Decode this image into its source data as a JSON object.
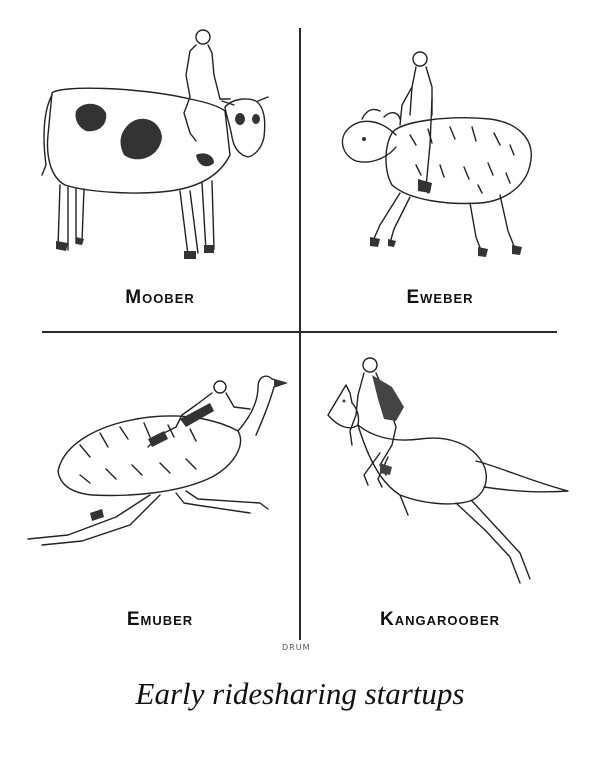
{
  "panels": [
    {
      "label": "Moober",
      "animal": "cow"
    },
    {
      "label": "Eweber",
      "animal": "sheep"
    },
    {
      "label": "Emuber",
      "animal": "emu"
    },
    {
      "label": "Kangaroober",
      "animal": "kangaroo"
    }
  ],
  "signature": "DRUM",
  "caption": "Early ridesharing startups"
}
